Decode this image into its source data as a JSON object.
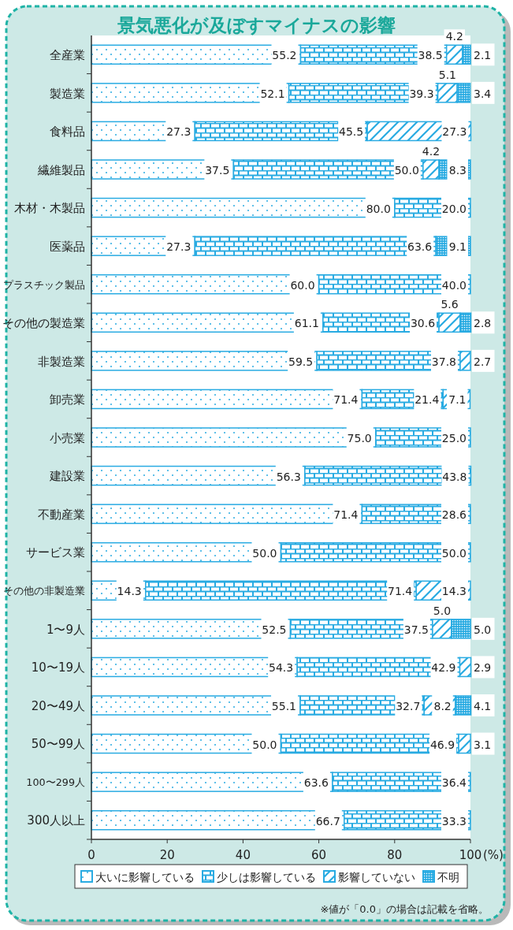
{
  "chart_data": {
    "type": "bar",
    "orientation": "horizontal",
    "stacked": true,
    "title": "景気悪化が及ぼすマイナスの影響",
    "categories": [
      "全産業",
      "製造業",
      "食料品",
      "繊維製品",
      "木材・木製品",
      "医薬品",
      "プラスチック製品",
      "その他の製造業",
      "非製造業",
      "卸売業",
      "小売業",
      "建設業",
      "不動産業",
      "サービス業",
      "その他の非製造業",
      "1〜9人",
      "10〜19人",
      "20〜49人",
      "50〜99人",
      "100〜299人",
      "300人以上"
    ],
    "series": [
      {
        "name": "大いに影響している",
        "color": "#29abe2",
        "values": [
          55.2,
          52.1,
          27.3,
          37.5,
          80.0,
          27.3,
          60.0,
          61.1,
          59.5,
          71.4,
          75.0,
          56.3,
          71.4,
          50.0,
          14.3,
          52.5,
          54.3,
          55.1,
          50.0,
          63.6,
          66.7
        ],
        "value_labels": [
          "55.2",
          "52.1",
          "27.3",
          "37.5",
          "80.0",
          "27.3",
          "60.0",
          "61.1",
          "59.5",
          "71.4",
          "75.0",
          "56.3",
          "71.4",
          "50.0",
          "14.3",
          "52.5",
          "54.3",
          "55.1",
          "50.0",
          "63.6",
          "66.7"
        ]
      },
      {
        "name": "少しは影響している",
        "color": "#29abe2",
        "values": [
          38.5,
          39.3,
          45.5,
          50.0,
          20.0,
          63.6,
          40.0,
          30.6,
          37.8,
          21.4,
          25.0,
          43.8,
          28.6,
          50.0,
          71.4,
          37.5,
          42.9,
          32.7,
          46.9,
          36.4,
          33.3
        ],
        "value_labels": [
          "38.5",
          "39.3",
          "45.5",
          "50.0",
          "20.0",
          "63.6",
          "40.0",
          "30.6",
          "37.8",
          "21.4",
          "25.0",
          "43.8",
          "28.6",
          "50.0",
          "71.4",
          "37.5",
          "42.9",
          "32.7",
          "46.9",
          "36.4",
          "33.3"
        ]
      },
      {
        "name": "影響していない",
        "color": "#29abe2",
        "values": [
          4.2,
          5.1,
          27.3,
          4.2,
          null,
          null,
          null,
          5.6,
          2.7,
          7.1,
          null,
          null,
          null,
          null,
          14.3,
          5.0,
          2.9,
          8.2,
          3.1,
          null,
          null
        ],
        "value_labels": [
          "4.2",
          "5.1",
          "27.3",
          "4.2",
          null,
          null,
          null,
          "5.6",
          "2.7",
          "7.1",
          null,
          null,
          null,
          null,
          "14.3",
          "5.0",
          "2.9",
          "8.2",
          "3.1",
          null,
          null
        ]
      },
      {
        "name": "不明",
        "color": "#29abe2",
        "values": [
          2.1,
          3.4,
          null,
          8.3,
          null,
          9.1,
          null,
          2.8,
          null,
          null,
          null,
          null,
          null,
          null,
          null,
          5.0,
          null,
          4.1,
          null,
          null,
          null
        ],
        "value_labels": [
          "2.1",
          "3.4",
          null,
          "8.3",
          null,
          "9.1",
          null,
          "2.8",
          null,
          null,
          null,
          null,
          null,
          null,
          null,
          "5.0",
          null,
          "4.1",
          null,
          null,
          null
        ]
      }
    ],
    "xlim": [
      0,
      100
    ],
    "xticks": [
      0,
      20,
      40,
      60,
      80,
      100
    ],
    "xlabel": "(%)",
    "legend": "bottom",
    "annotations": [
      "※値が「0.0」の場合は記載を省略。"
    ]
  }
}
